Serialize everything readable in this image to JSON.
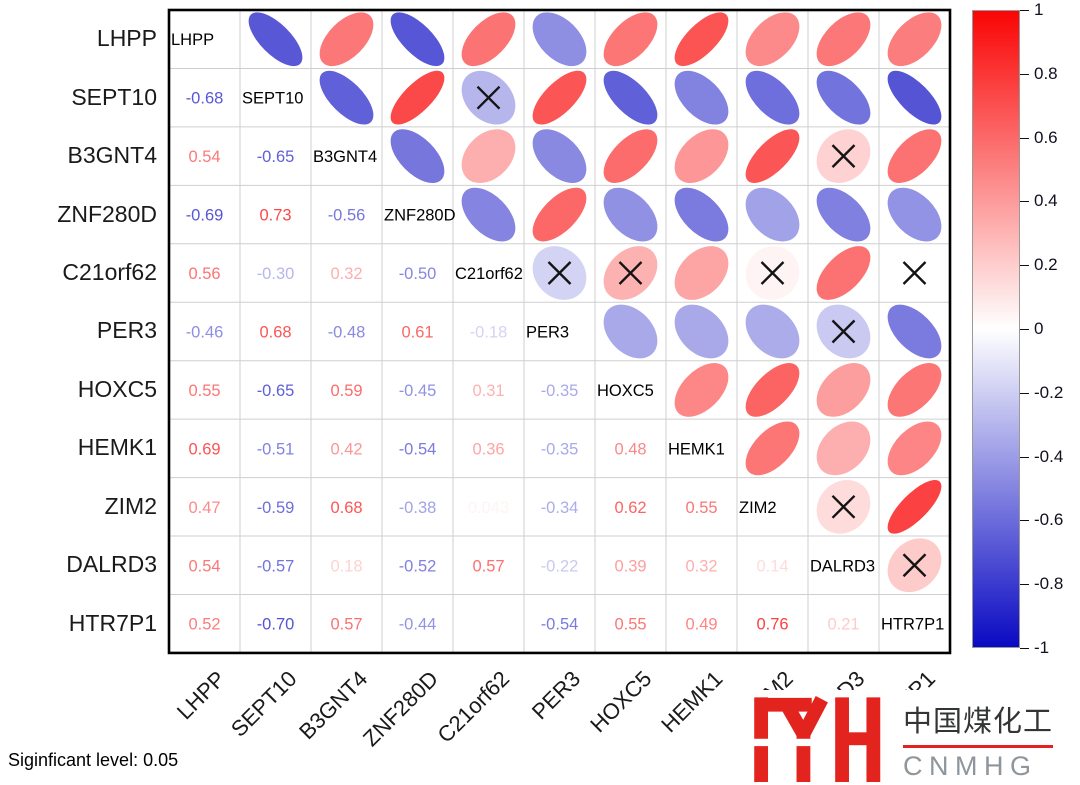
{
  "chart_data": {
    "type": "heatmap",
    "variant": "correlation-ellipse-matrix",
    "title": "",
    "genes": [
      "LHPP",
      "SEPT10",
      "B3GNT4",
      "ZNF280D",
      "C21orf62",
      "PER3",
      "HOXC5",
      "HEMK1",
      "ZIM2",
      "DALRD3",
      "HTR7P1"
    ],
    "lower_triangle_note": "row-wise displayed correlation coefficients; null = blank cell in image",
    "lower_triangle": [
      [],
      [
        "-0.68"
      ],
      [
        "0.54",
        "-0.65"
      ],
      [
        "-0.69",
        "0.73",
        "-0.56"
      ],
      [
        "0.56",
        "-0.30",
        "0.32",
        "-0.50"
      ],
      [
        "-0.46",
        "0.68",
        "-0.48",
        "0.61",
        "-0.18"
      ],
      [
        "0.55",
        "-0.65",
        "0.59",
        "-0.45",
        "0.31",
        "-0.35"
      ],
      [
        "0.69",
        "-0.51",
        "0.42",
        "-0.54",
        "0.36",
        "-0.35",
        "0.48"
      ],
      [
        "0.47",
        "-0.59",
        "0.68",
        "-0.38",
        "0.043",
        "-0.34",
        "0.62",
        "0.55"
      ],
      [
        "0.54",
        "-0.57",
        "0.18",
        "-0.52",
        "0.57",
        "-0.22",
        "0.39",
        "0.32",
        "0.14"
      ],
      [
        "0.52",
        "-0.70",
        "0.57",
        "-0.44",
        null,
        "-0.54",
        "0.55",
        "0.49",
        "0.76",
        "0.21"
      ]
    ],
    "not_significant_pairs": [
      [
        "SEPT10",
        "C21orf62"
      ],
      [
        "B3GNT4",
        "DALRD3"
      ],
      [
        "C21orf62",
        "PER3"
      ],
      [
        "C21orf62",
        "HOXC5"
      ],
      [
        "C21orf62",
        "ZIM2"
      ],
      [
        "C21orf62",
        "HTR7P1"
      ],
      [
        "PER3",
        "DALRD3"
      ],
      [
        "ZIM2",
        "DALRD3"
      ],
      [
        "DALRD3",
        "HTR7P1"
      ]
    ],
    "colorbar": {
      "ticks": [
        "1",
        "0.8",
        "0.6",
        "0.4",
        "0.2",
        "0",
        "-0.2",
        "-0.4",
        "-0.6",
        "-0.8",
        "-1"
      ],
      "range": [
        -1,
        1
      ],
      "positive_color": "#fa0505",
      "negative_color": "#0a0ac3",
      "zero_color": "#ffffff",
      "position": "right"
    },
    "legend_position": "right",
    "grid": true
  },
  "footnote": "Siginficant level: 0.05",
  "logo": {
    "chinese": "中国煤化工",
    "latin": "CNMHG",
    "brand_color": "#e2231e"
  },
  "colors": {
    "grid_line": "#cfcfcf",
    "border": "#000000",
    "x_mark": "#141414",
    "axis_text": "#1a1a1a"
  }
}
